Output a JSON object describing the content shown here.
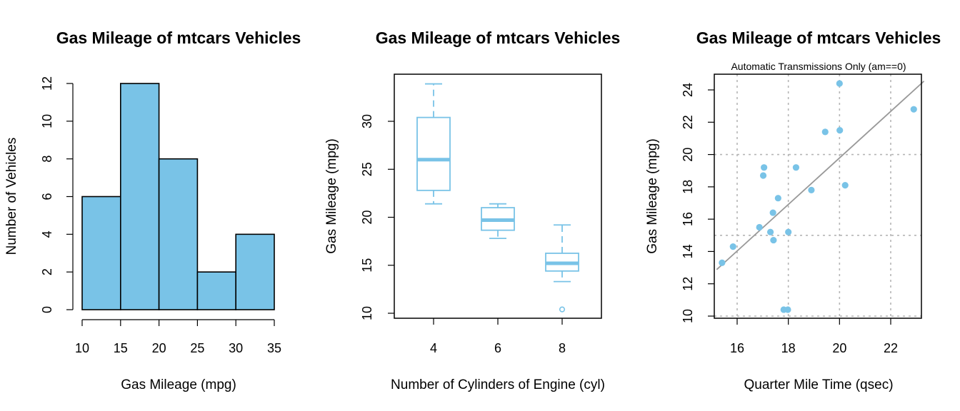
{
  "chart_data": [
    {
      "type": "bar",
      "subtype": "histogram",
      "title": "Gas Mileage of mtcars Vehicles",
      "xlabel": "Gas Mileage (mpg)",
      "ylabel": "Number of Vehicles",
      "bins": [
        [
          10,
          15
        ],
        [
          15,
          20
        ],
        [
          20,
          25
        ],
        [
          25,
          30
        ],
        [
          30,
          35
        ]
      ],
      "values": [
        6,
        12,
        8,
        2,
        4
      ],
      "xlim": [
        10,
        35
      ],
      "ylim": [
        0,
        12
      ],
      "x_ticks": [
        "10",
        "15",
        "20",
        "25",
        "30",
        "35"
      ],
      "y_ticks": [
        "0",
        "2",
        "4",
        "6",
        "8",
        "10",
        "12"
      ],
      "fill_color": "#79C3E7",
      "grid": false
    },
    {
      "type": "box",
      "title": "Gas Mileage of mtcars Vehicles",
      "xlabel": "Number of Cylinders of Engine (cyl)",
      "ylabel": "Gas Mileage (mpg)",
      "categories": [
        "4",
        "6",
        "8"
      ],
      "boxes": [
        {
          "min": 21.4,
          "q1": 22.8,
          "median": 26.0,
          "q3": 30.4,
          "max": 33.9,
          "outliers": []
        },
        {
          "min": 17.8,
          "q1": 18.65,
          "median": 19.7,
          "q3": 21.0,
          "max": 21.4,
          "outliers": []
        },
        {
          "min": 13.3,
          "q1": 14.4,
          "median": 15.2,
          "q3": 16.25,
          "max": 19.2,
          "outliers": [
            10.4
          ]
        }
      ],
      "ylim": [
        10,
        34
      ],
      "y_ticks": [
        "10",
        "15",
        "20",
        "25",
        "30"
      ],
      "color": "#79C3E7",
      "grid": false
    },
    {
      "type": "scatter",
      "title": "Gas Mileage of mtcars Vehicles",
      "subtitle": "Automatic Transmissions Only (am==0)",
      "xlabel": "Quarter Mile Time (qsec)",
      "ylabel": "Gas Mileage (mpg)",
      "points": [
        [
          19.44,
          21.4
        ],
        [
          17.02,
          18.7
        ],
        [
          20.22,
          18.1
        ],
        [
          15.84,
          14.3
        ],
        [
          20.0,
          24.4
        ],
        [
          22.9,
          22.8
        ],
        [
          18.3,
          19.2
        ],
        [
          18.9,
          17.8
        ],
        [
          17.4,
          16.4
        ],
        [
          17.6,
          17.3
        ],
        [
          18.0,
          15.2
        ],
        [
          17.98,
          10.4
        ],
        [
          17.82,
          10.4
        ],
        [
          17.42,
          14.7
        ],
        [
          20.01,
          21.5
        ],
        [
          16.87,
          15.5
        ],
        [
          17.3,
          15.2
        ],
        [
          15.41,
          13.3
        ],
        [
          17.05,
          19.2
        ]
      ],
      "fit_line": {
        "intercept": -9.01,
        "slope": 1.44
      },
      "xlim": [
        15.2,
        23.3
      ],
      "ylim": [
        9.9,
        24.9
      ],
      "x_ticks": [
        "16",
        "18",
        "20",
        "22"
      ],
      "y_ticks": [
        "10",
        "12",
        "14",
        "16",
        "18",
        "20",
        "22",
        "24"
      ],
      "grid_x": [
        16,
        18,
        20,
        22
      ],
      "grid_y": [
        10,
        15,
        20
      ],
      "point_color": "#79C3E7",
      "line_color": "#999999",
      "grid": true
    }
  ]
}
